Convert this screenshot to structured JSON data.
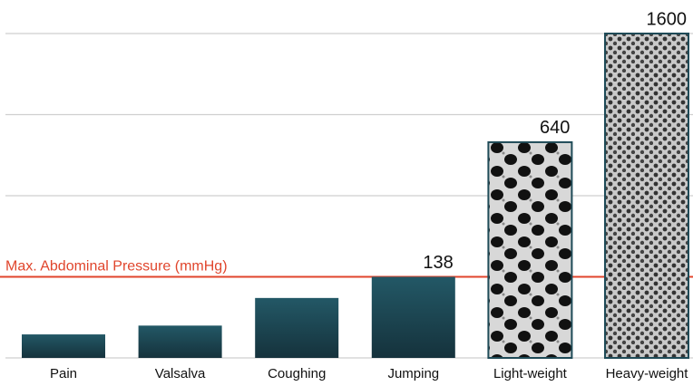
{
  "chart_data": {
    "type": "bar",
    "categories": [
      "Pain",
      "Valsalva",
      "Coughing",
      "Jumping",
      "Light-weight",
      "Heavy-weight"
    ],
    "values": [
      40,
      55,
      102,
      138,
      640,
      1600
    ],
    "show_label": [
      false,
      false,
      false,
      true,
      true,
      true
    ],
    "fills": [
      "solid",
      "solid",
      "solid",
      "solid",
      "mesh-light",
      "mesh-heavy"
    ],
    "color": "#1f4b58",
    "annotation": {
      "text": "Max. Abdominal Pressure (mmHg)",
      "value": 138,
      "color": "#e0452c"
    },
    "grid": true
  }
}
